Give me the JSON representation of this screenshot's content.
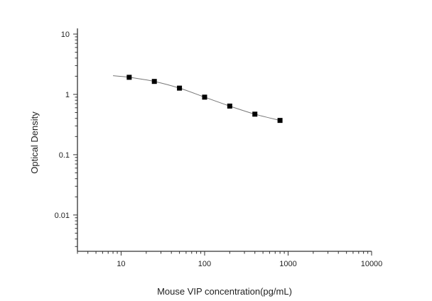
{
  "chart_data": {
    "type": "scatter",
    "title": "",
    "xlabel": "Mouse VIP concentration(pg/mL)",
    "ylabel": "Optical Density",
    "x_scale": "log",
    "y_scale": "log",
    "xlim": [
      3,
      10000
    ],
    "ylim": [
      0.0025,
      10
    ],
    "x_ticks": [
      "10",
      "100",
      "1000",
      "10000"
    ],
    "y_ticks": [
      "10",
      "1",
      "0.1",
      "0.01"
    ],
    "grid": false,
    "series": [
      {
        "marker": "square",
        "color": "#000000",
        "x": [
          12.5,
          25,
          50,
          100,
          200,
          400,
          800
        ],
        "y": [
          1.92,
          1.64,
          1.27,
          0.9,
          0.64,
          0.47,
          0.37
        ]
      }
    ],
    "fit_curve": {
      "color": "#777777",
      "x_range": [
        8,
        800
      ],
      "y_start": 2.04
    }
  }
}
